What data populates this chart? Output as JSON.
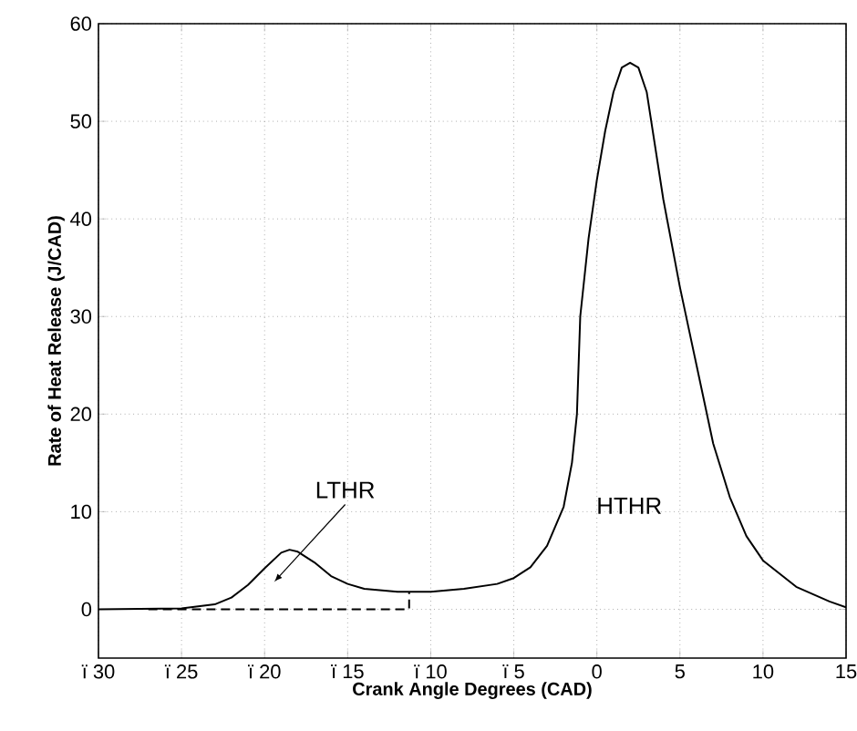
{
  "chart_data": {
    "type": "line",
    "xlabel": "Crank Angle Degrees (CAD)",
    "ylabel": "Rate of Heat Release (J/CAD)",
    "xlim": [
      -30,
      15
    ],
    "ylim": [
      -5,
      60
    ],
    "xticks": [
      {
        "value": -30,
        "label": "ï 30"
      },
      {
        "value": -25,
        "label": "ï 25"
      },
      {
        "value": -20,
        "label": "ï 20"
      },
      {
        "value": -15,
        "label": "ï 15"
      },
      {
        "value": -10,
        "label": "ï 10"
      },
      {
        "value": -5,
        "label": "ï 5"
      },
      0,
      5,
      10,
      15
    ],
    "yticks": [
      0,
      10,
      20,
      30,
      40,
      50,
      60
    ],
    "grid": true,
    "marker": "none",
    "series": [
      {
        "color": "#000000",
        "line_style": "solid",
        "x": [
          -30,
          -25,
          -23,
          -22,
          -21,
          -20,
          -19,
          -18.5,
          -18,
          -17,
          -16,
          -15,
          -14,
          -12,
          -10,
          -8,
          -6,
          -5,
          -4,
          -3,
          -2,
          -1.5,
          -1.2,
          -1,
          -0.5,
          0,
          0.5,
          1,
          1.5,
          2,
          2.5,
          3,
          4,
          5,
          6,
          7,
          8,
          9,
          10,
          12,
          14,
          15
        ],
        "values": [
          0,
          0.1,
          0.5,
          1.2,
          2.5,
          4.2,
          5.8,
          6.1,
          5.9,
          4.8,
          3.4,
          2.6,
          2.1,
          1.8,
          1.8,
          2.1,
          2.6,
          3.2,
          4.3,
          6.5,
          10.5,
          15,
          20,
          30,
          38,
          44,
          49,
          53,
          55.5,
          56,
          55.5,
          53,
          42,
          33,
          25,
          17,
          11.5,
          7.5,
          5,
          2.3,
          0.8,
          0.2
        ]
      },
      {
        "color": "#000000",
        "line_style": "dashed",
        "x": [
          -27,
          -11.3,
          -11.3
        ],
        "values": [
          0,
          0,
          1.8
        ]
      }
    ],
    "annotations": [
      "LTHR",
      "HTHR"
    ]
  }
}
